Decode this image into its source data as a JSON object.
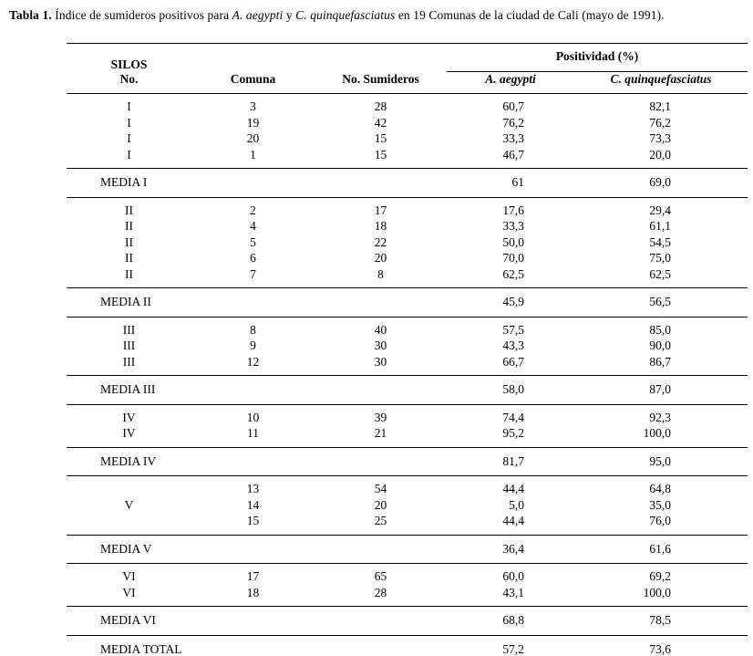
{
  "title": {
    "t1": "Tabla 1.",
    "t2": " Índice de sumideros positivos para ",
    "t3": "A. aegypti",
    "t4": " y ",
    "t5": "C. quinquefasciatus",
    "t6": " en 19 Comunas de la ciudad de Cali (mayo de 1991)."
  },
  "table": {
    "headers": {
      "silos_line1": "SILOS",
      "silos_line2": "No.",
      "comuna": "Comuna",
      "sumideros": "No. Sumideros",
      "positividad": "Positividad (%)",
      "aegypti": "A. aegypti",
      "quinquefasciatus": "C. quinquefasciatus"
    },
    "groups": [
      {
        "media_label": "MEDIA I",
        "media_aegypti": "61",
        "media_quinquefasciatus": "69,0",
        "rows": [
          {
            "silos": "I",
            "comuna": "3",
            "sumideros": "28",
            "aegypti": "60,7",
            "quinquefasciatus": "82,1"
          },
          {
            "silos": "I",
            "comuna": "19",
            "sumideros": "42",
            "aegypti": "76,2",
            "quinquefasciatus": "76,2"
          },
          {
            "silos": "I",
            "comuna": "20",
            "sumideros": "15",
            "aegypti": "33,3",
            "quinquefasciatus": "73,3"
          },
          {
            "silos": "I",
            "comuna": "1",
            "sumideros": "15",
            "aegypti": "46,7",
            "quinquefasciatus": "20,0"
          }
        ]
      },
      {
        "media_label": "MEDIA II",
        "media_aegypti": "45,9",
        "media_quinquefasciatus": "56,5",
        "rows": [
          {
            "silos": "II",
            "comuna": "2",
            "sumideros": "17",
            "aegypti": "17,6",
            "quinquefasciatus": "29,4"
          },
          {
            "silos": "II",
            "comuna": "4",
            "sumideros": "18",
            "aegypti": "33,3",
            "quinquefasciatus": "61,1"
          },
          {
            "silos": "II",
            "comuna": "5",
            "sumideros": "22",
            "aegypti": "50,0",
            "quinquefasciatus": "54,5"
          },
          {
            "silos": "II",
            "comuna": "6",
            "sumideros": "20",
            "aegypti": "70,0",
            "quinquefasciatus": "75,0"
          },
          {
            "silos": "II",
            "comuna": "7",
            "sumideros": "8",
            "aegypti": "62,5",
            "quinquefasciatus": "62,5"
          }
        ]
      },
      {
        "media_label": "MEDIA III",
        "media_aegypti": "58,0",
        "media_quinquefasciatus": "87,0",
        "rows": [
          {
            "silos": "III",
            "comuna": "8",
            "sumideros": "40",
            "aegypti": "57,5",
            "quinquefasciatus": "85,0"
          },
          {
            "silos": "III",
            "comuna": "9",
            "sumideros": "30",
            "aegypti": "43,3",
            "quinquefasciatus": "90,0"
          },
          {
            "silos": "III",
            "comuna": "12",
            "sumideros": "30",
            "aegypti": "66,7",
            "quinquefasciatus": "86,7"
          }
        ]
      },
      {
        "media_label": "MEDIA IV",
        "media_aegypti": "81,7",
        "media_quinquefasciatus": "95,0",
        "rows": [
          {
            "silos": "IV",
            "comuna": "10",
            "sumideros": "39",
            "aegypti": "74,4",
            "quinquefasciatus": "92,3"
          },
          {
            "silos": "IV",
            "comuna": "11",
            "sumideros": "21",
            "aegypti": "95,2",
            "quinquefasciatus": "100,0"
          }
        ]
      },
      {
        "media_label": "MEDIA V",
        "media_aegypti": "36,4",
        "media_quinquefasciatus": "61,6",
        "rows": [
          {
            "silos": "",
            "comuna": "13",
            "sumideros": "54",
            "aegypti": "44,4",
            "quinquefasciatus": "64,8"
          },
          {
            "silos": "V",
            "comuna": "14",
            "sumideros": "20",
            "aegypti": "5,0",
            "quinquefasciatus": "35,0"
          },
          {
            "silos": "",
            "comuna": "15",
            "sumideros": "25",
            "aegypti": "44,4",
            "quinquefasciatus": "76,0"
          }
        ]
      },
      {
        "media_label": "MEDIA VI",
        "media_aegypti": "68,8",
        "media_quinquefasciatus": "78,5",
        "rows": [
          {
            "silos": "VI",
            "comuna": "17",
            "sumideros": "65",
            "aegypti": "60,0",
            "quinquefasciatus": "69,2"
          },
          {
            "silos": "VI",
            "comuna": "18",
            "sumideros": "28",
            "aegypti": "43,1",
            "quinquefasciatus": "100,0"
          }
        ]
      }
    ],
    "total": {
      "label": "MEDIA TOTAL",
      "aegypti": "57,2",
      "quinquefasciatus": "73,6"
    }
  }
}
